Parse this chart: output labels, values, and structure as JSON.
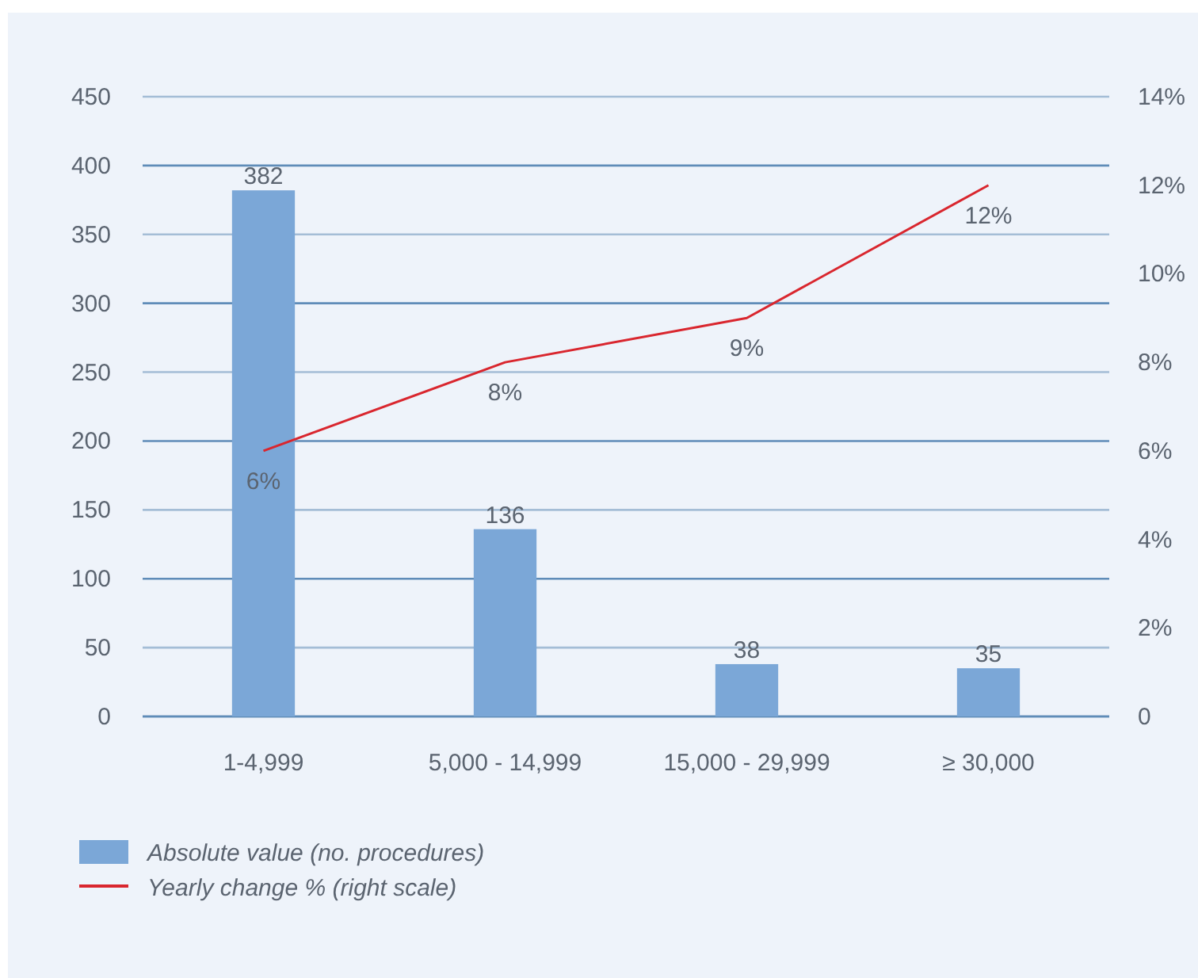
{
  "chart_data": {
    "type": "bar",
    "categories": [
      "1-4,999",
      "5,000 - 14,999",
      "15,000 - 29,999",
      "≥ 30,000"
    ],
    "series": [
      {
        "name": "Absolute value (no. procedures)",
        "color": "#7ba7d7",
        "values": [
          382,
          136,
          38,
          35
        ]
      },
      {
        "name": "Yearly change % (right scale)",
        "type": "line",
        "axis": "y2",
        "color": "#d9262e",
        "values": [
          6,
          8,
          9,
          12
        ],
        "value_labels": [
          "6%",
          "8%",
          "9%",
          "12%"
        ]
      }
    ],
    "ylim": [
      0,
      450
    ],
    "yticks": [
      0,
      50,
      100,
      150,
      200,
      250,
      300,
      350,
      400,
      450
    ],
    "y2lim": [
      0,
      14
    ],
    "y2ticks": [
      0,
      {
        "value": 2,
        "label": "2%"
      },
      {
        "value": 4,
        "label": "4%"
      },
      {
        "value": 6,
        "label": "6%"
      },
      {
        "value": 8,
        "label": "8%"
      },
      {
        "value": 10,
        "label": "10%"
      },
      {
        "value": 12,
        "label": "12%"
      },
      {
        "value": 14,
        "label": "14%"
      }
    ],
    "grid": "y",
    "data_labels": true,
    "legend": "bottom left"
  }
}
